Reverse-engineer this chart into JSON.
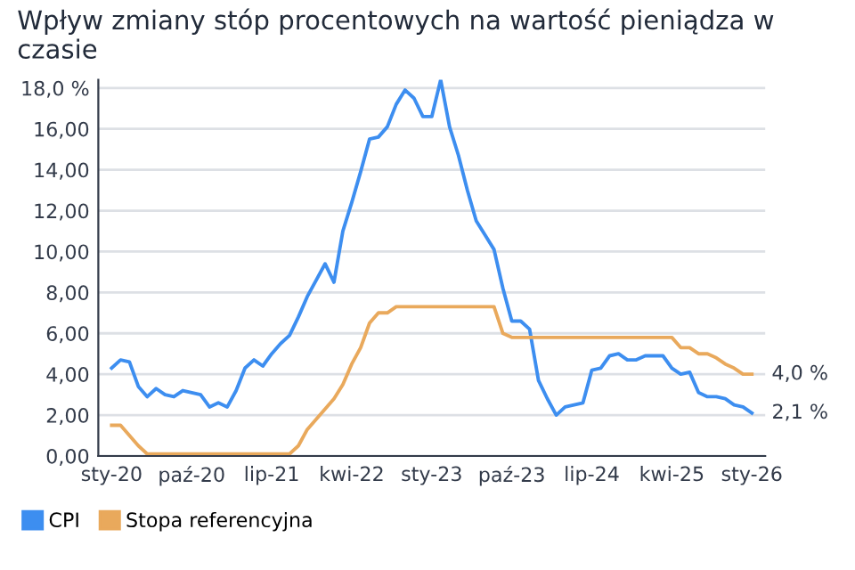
{
  "chart_data": {
    "type": "line",
    "title": "Wpływ zmiany stóp procentowych na wartość pieniądza w czasie",
    "categories": [
      "sty-20",
      null,
      null,
      null,
      null,
      null,
      null,
      null,
      null,
      "paź-20",
      null,
      null,
      null,
      null,
      null,
      null,
      null,
      null,
      "lip-21",
      null,
      null,
      null,
      null,
      null,
      null,
      null,
      null,
      "kwi-22",
      null,
      null,
      null,
      null,
      null,
      null,
      null,
      null,
      "sty-23",
      null,
      null,
      null,
      null,
      null,
      null,
      null,
      null,
      "paź-23",
      null,
      null,
      null,
      null,
      null,
      null,
      null,
      null,
      "lip-24",
      null,
      null,
      null,
      null,
      null,
      null,
      null,
      null,
      "kwi-25",
      null,
      null,
      null,
      null,
      null,
      null,
      null,
      null,
      "sty-26"
    ],
    "series": [
      {
        "name": "CPI",
        "color": "#3d8ef0",
        "values": [
          4.3,
          4.7,
          4.6,
          3.4,
          2.9,
          3.3,
          3.0,
          2.9,
          3.2,
          3.1,
          3.0,
          2.4,
          2.6,
          2.4,
          3.2,
          4.3,
          4.7,
          4.4,
          5.0,
          5.5,
          5.9,
          6.8,
          7.8,
          8.6,
          9.4,
          8.5,
          11.0,
          12.4,
          13.9,
          15.5,
          15.6,
          16.1,
          17.2,
          17.9,
          17.5,
          16.6,
          16.6,
          18.4,
          16.1,
          14.7,
          13.0,
          11.5,
          10.8,
          10.1,
          8.2,
          6.6,
          6.6,
          6.2,
          3.7,
          2.8,
          2.0,
          2.4,
          2.5,
          2.6,
          4.2,
          4.3,
          4.9,
          5.0,
          4.7,
          4.7,
          4.9,
          4.9,
          4.9,
          4.3,
          4.0,
          4.1,
          3.1,
          2.9,
          2.9,
          2.8,
          2.5,
          2.4,
          2.1
        ]
      },
      {
        "name": "Stopa referencyjna",
        "color": "#e9a95c",
        "values": [
          1.5,
          1.5,
          1.0,
          0.5,
          0.1,
          0.1,
          0.1,
          0.1,
          0.1,
          0.1,
          0.1,
          0.1,
          0.1,
          0.1,
          0.1,
          0.1,
          0.1,
          0.1,
          0.1,
          0.1,
          0.1,
          0.5,
          1.3,
          1.8,
          2.3,
          2.8,
          3.5,
          4.5,
          5.3,
          6.5,
          7.0,
          7.0,
          7.3,
          7.3,
          7.3,
          7.3,
          7.3,
          7.3,
          7.3,
          7.3,
          7.3,
          7.3,
          7.3,
          7.3,
          6.0,
          5.8,
          5.8,
          5.8,
          5.8,
          5.8,
          5.8,
          5.8,
          5.8,
          5.8,
          5.8,
          5.8,
          5.8,
          5.8,
          5.8,
          5.8,
          5.8,
          5.8,
          5.8,
          5.8,
          5.3,
          5.3,
          5.0,
          5.0,
          4.8,
          4.5,
          4.3,
          4.0,
          4.0
        ]
      }
    ],
    "ylim": [
      0,
      18.4
    ],
    "yticks": [
      {
        "value": 0,
        "label": "0,00"
      },
      {
        "value": 2,
        "label": "2,00"
      },
      {
        "value": 4,
        "label": "4,00"
      },
      {
        "value": 6,
        "label": "6,00"
      },
      {
        "value": 8,
        "label": "8,00"
      },
      {
        "value": 10,
        "label": "10,00"
      },
      {
        "value": 12,
        "label": "12,00"
      },
      {
        "value": 14,
        "label": "14,00"
      },
      {
        "value": 16,
        "label": "16,00"
      },
      {
        "value": 18,
        "label": "18,0 %"
      }
    ],
    "annotations": [
      {
        "text": "4,0 %",
        "x": "sty-26",
        "y": 4.0
      },
      {
        "text": "2,1 %",
        "x": "sty-26",
        "y": 2.1
      }
    ],
    "grid": "y",
    "legend": "bottom left",
    "marker": "none",
    "line_style": "solid"
  }
}
